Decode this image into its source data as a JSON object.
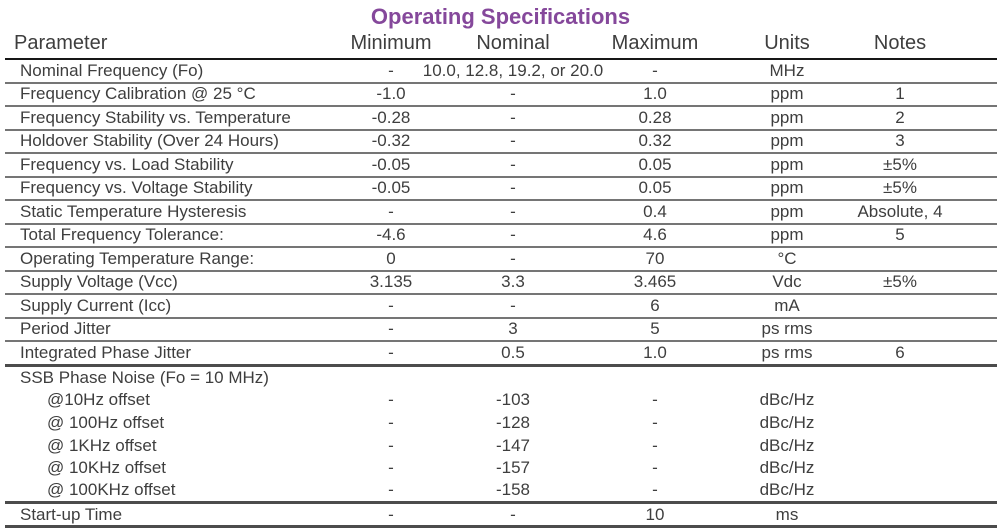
{
  "title": "Operating Specifications",
  "colors": {
    "title_text": "#85489b",
    "body_text": "#3e3e3e",
    "rule_regular": "#757575",
    "rule_heavy": "#4c4c4c",
    "header_rule": "#161616"
  },
  "table": {
    "headers": [
      "Parameter",
      "Minimum",
      "Nominal",
      "Maximum",
      "Units",
      "Notes"
    ],
    "rows": [
      {
        "parameter": "Nominal Frequency (Fo)",
        "minimum": "-",
        "nominal": "10.0, 12.8, 19.2, or 20.0",
        "maximum": "-",
        "units": "MHz",
        "notes": "",
        "indent": false,
        "wide": true,
        "rule": "normal"
      },
      {
        "parameter": "Frequency Calibration @ 25 °C",
        "minimum": "-1.0",
        "nominal": "-",
        "maximum": "1.0",
        "units": "ppm",
        "notes": "1",
        "indent": false,
        "wide": false,
        "rule": "normal"
      },
      {
        "parameter": "Frequency Stability vs. Temperature",
        "minimum": "-0.28",
        "nominal": "-",
        "maximum": "0.28",
        "units": "ppm",
        "notes": "2",
        "indent": false,
        "wide": false,
        "rule": "normal"
      },
      {
        "parameter": "Holdover Stability (Over 24 Hours)",
        "minimum": "-0.32",
        "nominal": "-",
        "maximum": "0.32",
        "units": "ppm",
        "notes": "3",
        "indent": false,
        "wide": false,
        "rule": "normal"
      },
      {
        "parameter": "Frequency vs. Load Stability",
        "minimum": "-0.05",
        "nominal": "-",
        "maximum": "0.05",
        "units": "ppm",
        "notes": "±5%",
        "indent": false,
        "wide": false,
        "rule": "normal"
      },
      {
        "parameter": "Frequency vs. Voltage Stability",
        "minimum": "-0.05",
        "nominal": "-",
        "maximum": "0.05",
        "units": "ppm",
        "notes": "±5%",
        "indent": false,
        "wide": false,
        "rule": "normal"
      },
      {
        "parameter": "Static Temperature Hysteresis",
        "minimum": "-",
        "nominal": "-",
        "maximum": "0.4",
        "units": "ppm",
        "notes": "Absolute, 4",
        "indent": false,
        "wide": false,
        "rule": "normal"
      },
      {
        "parameter": "Total Frequency Tolerance:",
        "minimum": "-4.6",
        "nominal": "-",
        "maximum": "4.6",
        "units": "ppm",
        "notes": "5",
        "indent": false,
        "wide": false,
        "rule": "normal"
      },
      {
        "parameter": "Operating Temperature Range:",
        "minimum": "0",
        "nominal": "-",
        "maximum": "70",
        "units": "°C",
        "notes": "",
        "indent": false,
        "wide": false,
        "rule": "normal"
      },
      {
        "parameter": "Supply Voltage (Vcc)",
        "minimum": "3.135",
        "nominal": "3.3",
        "maximum": "3.465",
        "units": "Vdc",
        "notes": "±5%",
        "indent": false,
        "wide": false,
        "rule": "normal"
      },
      {
        "parameter": "Supply Current (Icc)",
        "minimum": "-",
        "nominal": "-",
        "maximum": "6",
        "units": "mA",
        "notes": "",
        "indent": false,
        "wide": false,
        "rule": "normal"
      },
      {
        "parameter": "Period Jitter",
        "minimum": "-",
        "nominal": "3",
        "maximum": "5",
        "units": "ps rms",
        "notes": "",
        "indent": false,
        "wide": false,
        "rule": "normal"
      },
      {
        "parameter": "Integrated Phase Jitter",
        "minimum": "-",
        "nominal": "0.5",
        "maximum": "1.0",
        "units": "ps rms",
        "notes": "6",
        "indent": false,
        "wide": false,
        "rule": "heavy"
      },
      {
        "parameter": "SSB Phase Noise (Fo = 10 MHz)",
        "minimum": "",
        "nominal": "",
        "maximum": "",
        "units": "",
        "notes": "",
        "indent": false,
        "wide": false,
        "rule": "none"
      },
      {
        "parameter": "@10Hz offset",
        "minimum": "-",
        "nominal": "-103",
        "maximum": "-",
        "units": "dBc/Hz",
        "notes": "",
        "indent": true,
        "wide": false,
        "rule": "none"
      },
      {
        "parameter": "@ 100Hz offset",
        "minimum": "-",
        "nominal": "-128",
        "maximum": "-",
        "units": "dBc/Hz",
        "notes": "",
        "indent": true,
        "wide": false,
        "rule": "none"
      },
      {
        "parameter": "@ 1KHz offset",
        "minimum": "-",
        "nominal": "-147",
        "maximum": "-",
        "units": "dBc/Hz",
        "notes": "",
        "indent": true,
        "wide": false,
        "rule": "none"
      },
      {
        "parameter": "@ 10KHz offset",
        "minimum": "-",
        "nominal": "-157",
        "maximum": "-",
        "units": "dBc/Hz",
        "notes": "",
        "indent": true,
        "wide": false,
        "rule": "none"
      },
      {
        "parameter": "@ 100KHz offset",
        "minimum": "-",
        "nominal": "-158",
        "maximum": "-",
        "units": "dBc/Hz",
        "notes": "",
        "indent": true,
        "wide": false,
        "rule": "heavy"
      },
      {
        "parameter": "Start-up Time",
        "minimum": "-",
        "nominal": "-",
        "maximum": "10",
        "units": "ms",
        "notes": "",
        "indent": false,
        "wide": false,
        "rule": "heavy"
      }
    ]
  }
}
